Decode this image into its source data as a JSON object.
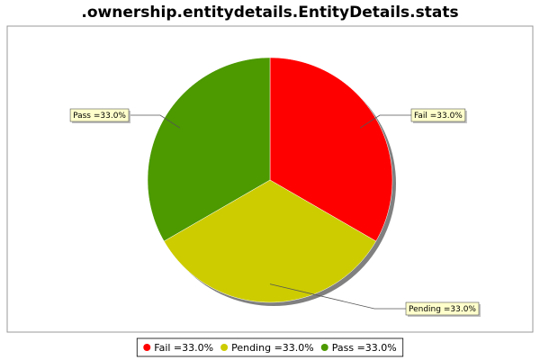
{
  "chart_data": {
    "type": "pie",
    "title": ".ownership.entitydetails.EntityDetails.stats",
    "slices": [
      {
        "name": "Fail",
        "value": 33.0,
        "label": "Fail =33.0%",
        "color": "#ff0000"
      },
      {
        "name": "Pending",
        "value": 33.0,
        "label": "Pending =33.0%",
        "color": "#cccc00"
      },
      {
        "name": "Pass",
        "value": 33.0,
        "label": "Pass =33.0%",
        "color": "#4c9900"
      }
    ],
    "legend_placement": "bottom"
  },
  "colors": {
    "plot_border": "#999999",
    "label_fill": "#ffffcc",
    "shadow": "#808080"
  }
}
